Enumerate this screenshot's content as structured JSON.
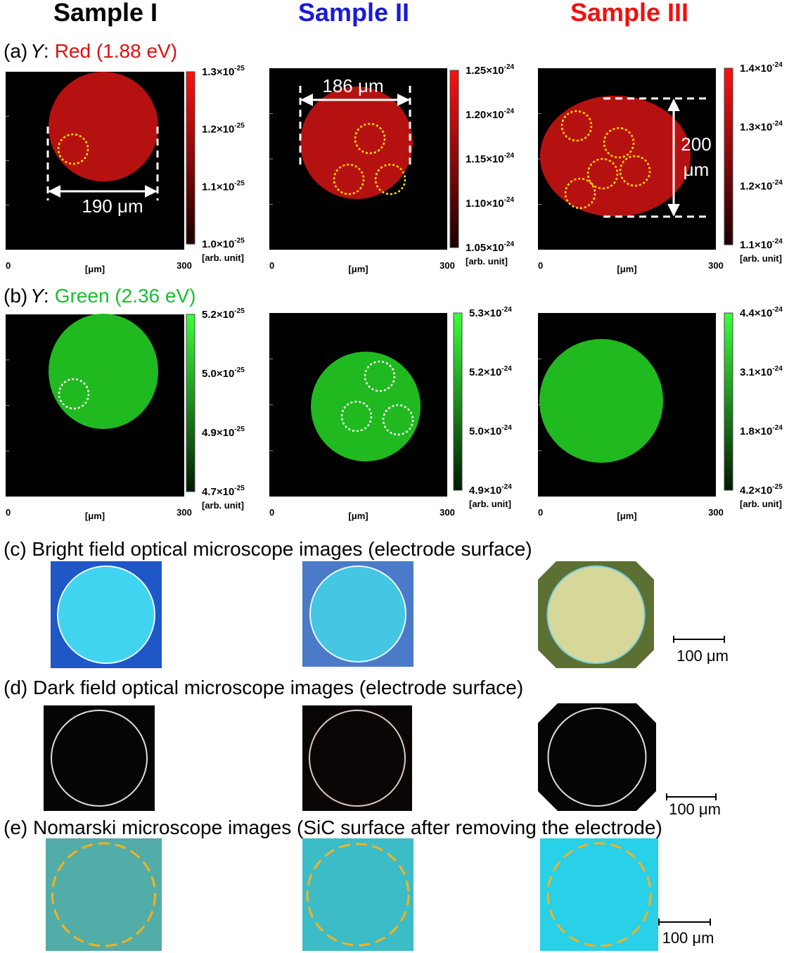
{
  "columns": [
    {
      "title": "Sample I"
    },
    {
      "title": "Sample II"
    },
    {
      "title": "Sample III"
    }
  ],
  "maps": [
    {
      "label": "(a)",
      "variable": "Y",
      "separator": ":",
      "channel": "Red (1.88 eV)",
      "panels": [
        {
          "colorbar_ticks": [
            {
              "coefficient": "1.3×10",
              "exponent": "-25"
            },
            {
              "coefficient": "1.2×10",
              "exponent": "-25"
            },
            {
              "coefficient": "1.1×10",
              "exponent": "-25"
            },
            {
              "coefficient": "1.0×10",
              "exponent": "-25"
            }
          ],
          "unit": "[arb. unit]",
          "x_min": "0",
          "x_max": "300",
          "x_label": "[μm]",
          "annotation": [
            "190 μm"
          ]
        },
        {
          "colorbar_ticks": [
            {
              "coefficient": "1.25×10",
              "exponent": "-24"
            },
            {
              "coefficient": "1.20×10",
              "exponent": "-24"
            },
            {
              "coefficient": "1.15×10",
              "exponent": "-24"
            },
            {
              "coefficient": "1.10×10",
              "exponent": "-24"
            },
            {
              "coefficient": "1.05×10",
              "exponent": "-24"
            }
          ],
          "unit": "[arb. unit]",
          "x_min": "0",
          "x_max": "300",
          "x_label": "[μm]",
          "annotation": [
            "186 μm"
          ]
        },
        {
          "colorbar_ticks": [
            {
              "coefficient": "1.4×10",
              "exponent": "-24"
            },
            {
              "coefficient": "1.3×10",
              "exponent": "-24"
            },
            {
              "coefficient": "1.2×10",
              "exponent": "-24"
            },
            {
              "coefficient": "1.1×10",
              "exponent": "-24"
            }
          ],
          "unit": "[arb. unit]",
          "x_min": "0",
          "x_max": "300",
          "x_label": "[μm]",
          "annotation": [
            "200",
            "μm"
          ]
        }
      ]
    },
    {
      "label": "(b)",
      "variable": "Y",
      "separator": ":",
      "channel": "Green (2.36 eV)",
      "panels": [
        {
          "colorbar_ticks": [
            {
              "coefficient": "5.2×10",
              "exponent": "-25"
            },
            {
              "coefficient": "5.0×10",
              "exponent": "-25"
            },
            {
              "coefficient": "4.9×10",
              "exponent": "-25"
            },
            {
              "coefficient": "4.7×10",
              "exponent": "-25"
            }
          ],
          "unit": "[arb. unit]",
          "x_min": "0",
          "x_max": "300",
          "x_label": "[μm]"
        },
        {
          "colorbar_ticks": [
            {
              "coefficient": "5.3×10",
              "exponent": "-24"
            },
            {
              "coefficient": "5.2×10",
              "exponent": "-24"
            },
            {
              "coefficient": "5.0×10",
              "exponent": "-24"
            },
            {
              "coefficient": "4.9×10",
              "exponent": "-24"
            }
          ],
          "unit": "[arb. unit]",
          "x_min": "0",
          "x_max": "300",
          "x_label": "[μm]"
        },
        {
          "colorbar_ticks": [
            {
              "coefficient": "4.4×10",
              "exponent": "-24"
            },
            {
              "coefficient": "3.1×10",
              "exponent": "-24"
            },
            {
              "coefficient": "1.8×10",
              "exponent": "-24"
            },
            {
              "coefficient": "4.2×10",
              "exponent": "-25"
            }
          ],
          "unit": "[arb. unit]",
          "x_min": "0",
          "x_max": "300",
          "x_label": "[μm]"
        }
      ]
    }
  ],
  "micrographs": [
    {
      "caption": "(c) Bright field optical microscope images (electrode surface)",
      "scale_bar": "100 μm"
    },
    {
      "caption": "(d) Dark field optical microscope images (electrode surface)",
      "scale_bar": "100 μm"
    },
    {
      "caption": "(e) Nomarski microscope images (SiC surface after removing the electrode)",
      "scale_bar": "100 μm"
    }
  ]
}
